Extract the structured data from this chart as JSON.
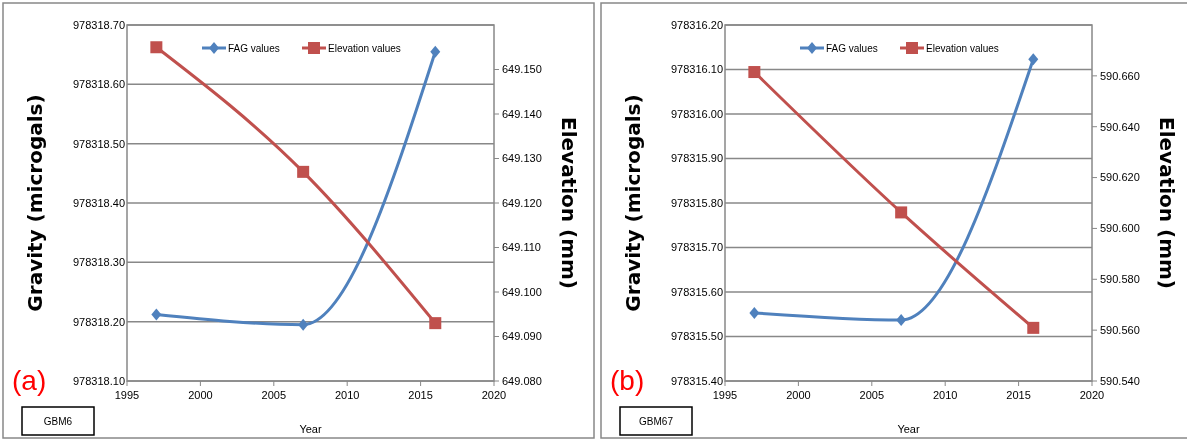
{
  "chart_data": [
    {
      "type": "line",
      "xlabel": "Year",
      "ylabel": "Gravity (microgals)",
      "y2label": "Elevation (mm)",
      "x": [
        1997,
        2007,
        2016
      ],
      "series": [
        {
          "name": "FAG values",
          "color": "#4f81bd",
          "values": [
            978318.212,
            978318.195,
            978318.655
          ],
          "marker": "diamond"
        },
        {
          "name": "Elevation values",
          "color": "#c0504d",
          "values": [
            649.155,
            649.127,
            649.093
          ],
          "axis": "y2",
          "marker": "square"
        }
      ],
      "xlim": [
        1995,
        2020
      ],
      "xticks": [
        1995,
        2000,
        2005,
        2010,
        2015,
        2020
      ],
      "ylim": [
        978318.1,
        978318.7
      ],
      "yticks": [
        {
          "value": 978318.1,
          "label": "978318.10"
        },
        {
          "value": 978318.2,
          "label": "978318.20"
        },
        {
          "value": 978318.3,
          "label": "978318.30"
        },
        {
          "value": 978318.4,
          "label": "978318.40"
        },
        {
          "value": 978318.5,
          "label": "978318.50"
        },
        {
          "value": 978318.6,
          "label": "978318.60"
        },
        {
          "value": 978318.7,
          "label": "978318.70"
        }
      ],
      "y2lim": [
        649.08,
        649.16
      ],
      "y2ticks": [
        {
          "value": 649.08,
          "label": "649.080"
        },
        {
          "value": 649.09,
          "label": "649.090"
        },
        {
          "value": 649.1,
          "label": "649.100"
        },
        {
          "value": 649.11,
          "label": "649.110"
        },
        {
          "value": 649.12,
          "label": "649.120"
        },
        {
          "value": 649.13,
          "label": "649.130"
        },
        {
          "value": 649.14,
          "label": "649.140"
        },
        {
          "value": 649.15,
          "label": "649.150"
        }
      ],
      "grid": "y",
      "legend": "top",
      "annotations": [
        "(a)",
        "GBM6"
      ]
    },
    {
      "type": "line",
      "xlabel": "Year",
      "ylabel": "Gravity (microgals)",
      "y2label": "Elevation (mm)",
      "x": [
        1997,
        2007,
        2016
      ],
      "series": [
        {
          "name": "FAG values",
          "color": "#4f81bd",
          "values": [
            978315.553,
            978315.537,
            978316.123
          ],
          "marker": "diamond"
        },
        {
          "name": "Elevation values",
          "color": "#c0504d",
          "values": [
            590.6615,
            590.6063,
            590.5609
          ],
          "axis": "y2",
          "marker": "square"
        }
      ],
      "xlim": [
        1995,
        2020
      ],
      "xticks": [
        1995,
        2000,
        2005,
        2010,
        2015,
        2020
      ],
      "ylim": [
        978315.4,
        978316.2
      ],
      "yticks": [
        {
          "value": 978315.4,
          "label": "978315.40"
        },
        {
          "value": 978315.5,
          "label": "978315.50"
        },
        {
          "value": 978315.6,
          "label": "978315.60"
        },
        {
          "value": 978315.7,
          "label": "978315.70"
        },
        {
          "value": 978315.8,
          "label": "978315.80"
        },
        {
          "value": 978315.9,
          "label": "978315.90"
        },
        {
          "value": 978316.0,
          "label": "978316.00"
        },
        {
          "value": 978316.1,
          "label": "978316.10"
        },
        {
          "value": 978316.2,
          "label": "978316.20"
        }
      ],
      "y2lim": [
        590.54,
        590.68
      ],
      "y2ticks": [
        {
          "value": 590.54,
          "label": "590.540"
        },
        {
          "value": 590.56,
          "label": "590.560"
        },
        {
          "value": 590.58,
          "label": "590.580"
        },
        {
          "value": 590.6,
          "label": "590.600"
        },
        {
          "value": 590.62,
          "label": "590.620"
        },
        {
          "value": 590.64,
          "label": "590.640"
        },
        {
          "value": 590.66,
          "label": "590.660"
        }
      ],
      "grid": "y",
      "legend": "top",
      "annotations": [
        "(b)",
        "GBM67"
      ]
    }
  ]
}
